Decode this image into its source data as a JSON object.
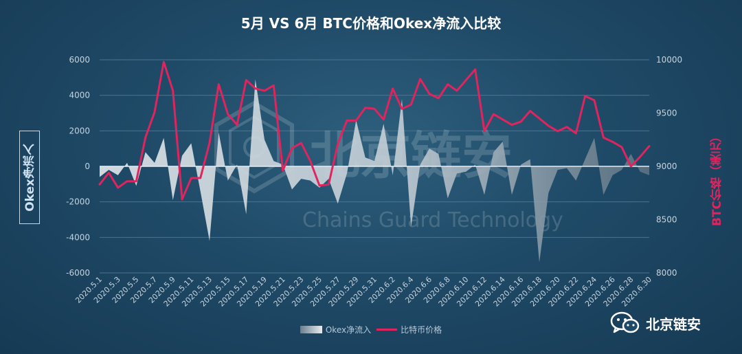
{
  "chart_data": {
    "type": "area+line",
    "title": "5月 VS 6月 BTC价格和Okex净流入比较",
    "y_left_label": "Okex净流入",
    "y_right_label": "BTC价格（美元）",
    "y_left_range": [
      -6000,
      6000
    ],
    "y_left_ticks": [
      "6000",
      "4000",
      "2000",
      "0",
      "-2000",
      "-4000",
      "-6000"
    ],
    "y_right_range": [
      8000,
      10000
    ],
    "y_right_ticks": [
      "10000",
      "9500",
      "9000",
      "8500",
      "8000"
    ],
    "x_tick_labels": [
      "2020.5.1",
      "2020.5.3",
      "2020.5.5",
      "2020.5.7",
      "2020.5.9",
      "2020.5.11",
      "2020.5.13",
      "2020.5.15",
      "2020.5.17",
      "2020.5.19",
      "2020.5.21",
      "2020.5.23",
      "2020.5.25",
      "2020.5.27",
      "2020.5.29",
      "2020.5.31",
      "2020.6.2",
      "2020.6.4",
      "2020.6.6",
      "2020.6.8",
      "2020.6.10",
      "2020.6.12",
      "2020.6.14",
      "2020.6.16",
      "2020.6.18",
      "2020.6.20",
      "2020.6.22",
      "2020.6.24",
      "2020.6.26",
      "2020.6.28",
      "2020.6.30"
    ],
    "x": [
      "2020.5.1",
      "2020.5.2",
      "2020.5.3",
      "2020.5.4",
      "2020.5.5",
      "2020.5.6",
      "2020.5.7",
      "2020.5.8",
      "2020.5.9",
      "2020.5.10",
      "2020.5.11",
      "2020.5.12",
      "2020.5.13",
      "2020.5.14",
      "2020.5.15",
      "2020.5.16",
      "2020.5.17",
      "2020.5.18",
      "2020.5.19",
      "2020.5.20",
      "2020.5.21",
      "2020.5.22",
      "2020.5.23",
      "2020.5.24",
      "2020.5.25",
      "2020.5.26",
      "2020.5.27",
      "2020.5.28",
      "2020.5.29",
      "2020.5.30",
      "2020.5.31",
      "2020.6.1",
      "2020.6.2",
      "2020.6.3",
      "2020.6.4",
      "2020.6.5",
      "2020.6.6",
      "2020.6.7",
      "2020.6.8",
      "2020.6.9",
      "2020.6.10",
      "2020.6.11",
      "2020.6.12",
      "2020.6.13",
      "2020.6.14",
      "2020.6.15",
      "2020.6.16",
      "2020.6.17",
      "2020.6.18",
      "2020.6.19",
      "2020.6.20",
      "2020.6.21",
      "2020.6.22",
      "2020.6.23",
      "2020.6.24",
      "2020.6.25",
      "2020.6.26",
      "2020.6.27",
      "2020.6.28",
      "2020.6.29",
      "2020.6.30"
    ],
    "series": [
      {
        "name": "Okex净流入",
        "type": "area",
        "axis": "left",
        "values": [
          -600,
          -200,
          -500,
          200,
          -1100,
          800,
          200,
          1600,
          -1900,
          600,
          1300,
          -1400,
          -4200,
          1900,
          -800,
          100,
          -2700,
          4900,
          1500,
          300,
          100,
          -1300,
          -700,
          -800,
          -1200,
          -700,
          -2100,
          -400,
          2600,
          500,
          300,
          2400,
          -500,
          3800,
          -3400,
          100,
          1000,
          700,
          -1800,
          -400,
          -300,
          100,
          -1600,
          800,
          1400,
          -1600,
          100,
          400,
          -5400,
          -1500,
          -200,
          -100,
          -800,
          400,
          1600,
          -1600,
          -500,
          -200,
          700,
          -300,
          -500
        ]
      },
      {
        "name": "比特币价格",
        "type": "line",
        "axis": "right",
        "values": [
          8830,
          8940,
          8800,
          8860,
          8860,
          9270,
          9510,
          9980,
          9710,
          8690,
          8890,
          8890,
          9220,
          9770,
          9490,
          9390,
          9810,
          9730,
          9710,
          9760,
          8960,
          9170,
          9220,
          9050,
          8820,
          8830,
          9210,
          9430,
          9430,
          9550,
          9540,
          9440,
          9730,
          9540,
          9580,
          9820,
          9680,
          9640,
          9770,
          9710,
          9810,
          9910,
          9330,
          9490,
          9440,
          9390,
          9420,
          9520,
          9450,
          9380,
          9330,
          9370,
          9310,
          9660,
          9620,
          9270,
          9230,
          9180,
          9000,
          9090,
          9190
        ]
      }
    ],
    "legend": [
      "Okex净流入",
      "比特币价格"
    ],
    "legend_position": "bottom",
    "colors": {
      "area_light": "#e8ecef",
      "area_dark": "#5f7484",
      "line": "#e0245e",
      "zero_line": "#e6eef4",
      "grid": "#4b7490",
      "tick_text": "#c7d3dd",
      "right_axis_text": "#e0245e",
      "background": "#1f4a67"
    }
  },
  "watermark": {
    "main": "北京链安",
    "sub": "Chains Guard Technology"
  },
  "brand": {
    "name": "北京链安",
    "icon": "wechat-icon"
  }
}
